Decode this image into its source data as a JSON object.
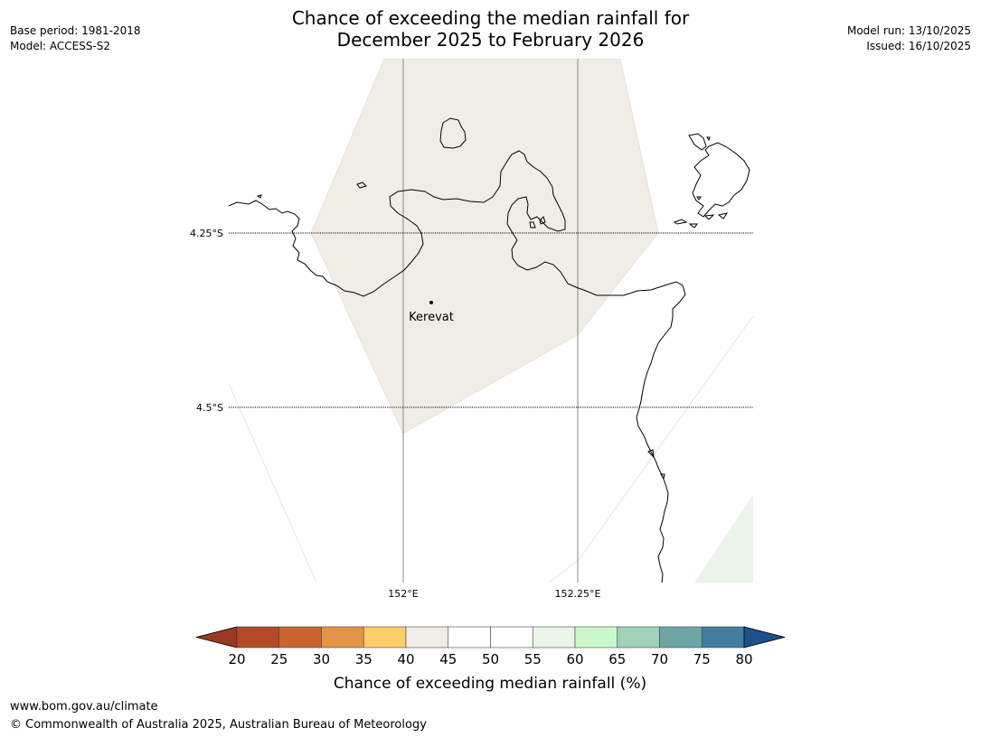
{
  "header": {
    "base_period": "Base period: 1981-2018",
    "model": "Model: ACCESS-S2",
    "title_line1": "Chance of exceeding the median rainfall for",
    "title_line2": "December 2025 to February 2026",
    "model_run": "Model run: 13/10/2025",
    "issued": "Issued: 16/10/2025"
  },
  "map": {
    "lat_labels": [
      "4.25°S",
      "4.5°S"
    ],
    "lon_labels": [
      "152°E",
      "152.25°E"
    ],
    "place": "Kerevat"
  },
  "legend": {
    "ticks": [
      "20",
      "25",
      "30",
      "35",
      "40",
      "45",
      "50",
      "55",
      "60",
      "65",
      "70",
      "75",
      "80"
    ],
    "colors": [
      "#9b3a24",
      "#b34a27",
      "#cb6530",
      "#e39545",
      "#fdcd6a",
      "#f0ece6",
      "#ffffff",
      "#ffffff",
      "#eaf6e7",
      "#c9f9c9",
      "#9fd2b8",
      "#6ea6a6",
      "#437e9e",
      "#1d4f89"
    ],
    "label": "Chance of exceeding median rainfall (%)"
  },
  "footer": {
    "url": "www.bom.gov.au/climate",
    "copyright": "© Commonwealth of Australia 2025, Australian Bureau of Meteorology"
  }
}
